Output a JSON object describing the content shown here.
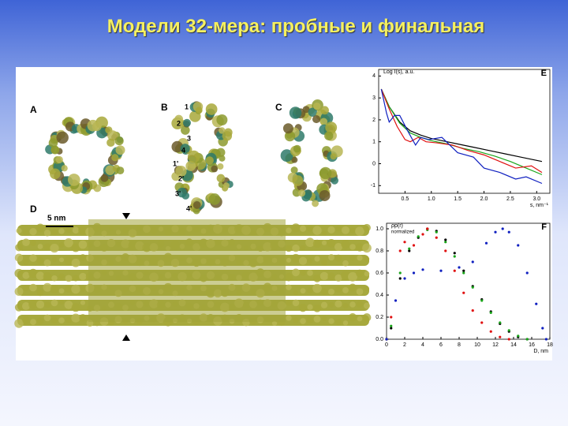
{
  "title": "Модели 32-мера: пробные и финальная",
  "figure": {
    "panel_labels": [
      "A",
      "B",
      "C",
      "D"
    ],
    "chain_labels": [
      "1",
      "2",
      "3",
      "4",
      "1'",
      "2'",
      "3'",
      "4'"
    ],
    "scale_label": "5 nm"
  },
  "chart_data": [
    {
      "type": "line",
      "panel": "E",
      "ylabel": "Log I(s), a.u.",
      "xlabel": "s, nm⁻¹",
      "xlim": [
        0,
        3.25
      ],
      "ylim": [
        -1.35,
        4.3
      ],
      "xticks": [
        0.5,
        {
          "value": 1.0,
          "label": "1.0"
        },
        1.5,
        {
          "value": 2.0,
          "label": "2.0"
        },
        2.5,
        {
          "value": 3.0,
          "label": "3.0"
        }
      ],
      "yticks": [
        4,
        3,
        2,
        1,
        0,
        -1
      ],
      "series": [
        {
          "color": "#000000",
          "x": [
            0.05,
            0.2,
            0.4,
            0.6,
            0.8,
            1.0,
            1.2,
            1.5,
            1.8,
            2.1,
            2.4,
            2.7,
            3.0,
            3.1
          ],
          "values": [
            3.4,
            2.6,
            1.9,
            1.5,
            1.3,
            1.15,
            1.05,
            0.9,
            0.75,
            0.6,
            0.45,
            0.3,
            0.15,
            0.1
          ]
        },
        {
          "color": "#1aa51a",
          "x": [
            0.05,
            0.2,
            0.4,
            0.6,
            0.8,
            1.0,
            1.3,
            1.6,
            1.9,
            2.2,
            2.5,
            2.8,
            3.1
          ],
          "values": [
            3.4,
            2.6,
            1.85,
            1.4,
            1.2,
            1.05,
            0.9,
            0.7,
            0.55,
            0.35,
            0.1,
            -0.2,
            -0.5
          ]
        },
        {
          "color": "#e01010",
          "x": [
            0.05,
            0.2,
            0.35,
            0.5,
            0.6,
            0.75,
            0.9,
            1.1,
            1.4,
            1.7,
            2.0,
            2.3,
            2.6,
            2.9,
            3.1
          ],
          "values": [
            3.4,
            2.5,
            1.7,
            1.1,
            1.0,
            1.2,
            1.0,
            0.95,
            0.85,
            0.6,
            0.4,
            0.1,
            -0.2,
            -0.1,
            -0.4
          ]
        },
        {
          "color": "#1020c0",
          "x": [
            0.05,
            0.15,
            0.2,
            0.3,
            0.4,
            0.55,
            0.7,
            0.8,
            0.95,
            1.2,
            1.5,
            1.8,
            2.0,
            2.3,
            2.6,
            2.8,
            3.1
          ],
          "values": [
            3.4,
            2.3,
            1.9,
            2.2,
            2.2,
            1.5,
            0.85,
            1.2,
            1.1,
            1.2,
            0.5,
            0.3,
            -0.2,
            -0.4,
            -0.7,
            -0.6,
            -0.9
          ]
        }
      ]
    },
    {
      "type": "scatter",
      "panel": "F",
      "ylabel": "ρp(r)",
      "ylabel_note": "normalized",
      "xlabel": "D, nm",
      "xlim": [
        0,
        18
      ],
      "ylim": [
        0,
        1.05
      ],
      "xticks": [
        0,
        2,
        4,
        6,
        8,
        10,
        12,
        14,
        16,
        18
      ],
      "yticks": [
        {
          "value": 1.0,
          "label": "1.0"
        },
        0.8,
        0.6,
        0.4,
        0.2,
        {
          "value": 0.0,
          "label": "0.0"
        }
      ],
      "series": [
        {
          "color": "#000000",
          "x": [
            0,
            0.5,
            1.5,
            2.5,
            3.5,
            4.5,
            5.5,
            6.5,
            7.5,
            8.5,
            9.5,
            10.5,
            11.5,
            12.5,
            13.5,
            14.5,
            15.5
          ],
          "values": [
            0,
            0.1,
            0.55,
            0.8,
            0.92,
            1.0,
            0.98,
            0.9,
            0.78,
            0.62,
            0.48,
            0.36,
            0.25,
            0.14,
            0.07,
            0.02,
            0
          ]
        },
        {
          "color": "#1aa51a",
          "x": [
            0,
            0.5,
            1.5,
            2.5,
            3.5,
            4.5,
            5.5,
            6.5,
            7.5,
            8.5,
            9.5,
            10.5,
            11.5,
            12.5,
            13.5,
            14.5,
            15.5
          ],
          "values": [
            0,
            0.12,
            0.6,
            0.82,
            0.93,
            0.99,
            0.97,
            0.88,
            0.75,
            0.6,
            0.47,
            0.35,
            0.24,
            0.15,
            0.08,
            0.03,
            0
          ]
        },
        {
          "color": "#e01010",
          "x": [
            0,
            0.5,
            1.5,
            2,
            3,
            4,
            4.5,
            5.5,
            6.5,
            7.5,
            8.5,
            9.5,
            10.5,
            11.5,
            12.5,
            13.5
          ],
          "values": [
            0,
            0.2,
            0.8,
            0.88,
            0.85,
            0.95,
            1.0,
            0.92,
            0.8,
            0.62,
            0.42,
            0.26,
            0.15,
            0.07,
            0.02,
            0
          ]
        },
        {
          "color": "#1020c0",
          "x": [
            0,
            1,
            2,
            3,
            4,
            6,
            8,
            9.5,
            11,
            12,
            12.8,
            13.5,
            14.5,
            15.5,
            16.5,
            17.2,
            17.6
          ],
          "values": [
            0,
            0.35,
            0.55,
            0.6,
            0.63,
            0.62,
            0.65,
            0.7,
            0.87,
            0.97,
            1.0,
            0.97,
            0.85,
            0.6,
            0.32,
            0.1,
            0
          ]
        }
      ]
    }
  ]
}
